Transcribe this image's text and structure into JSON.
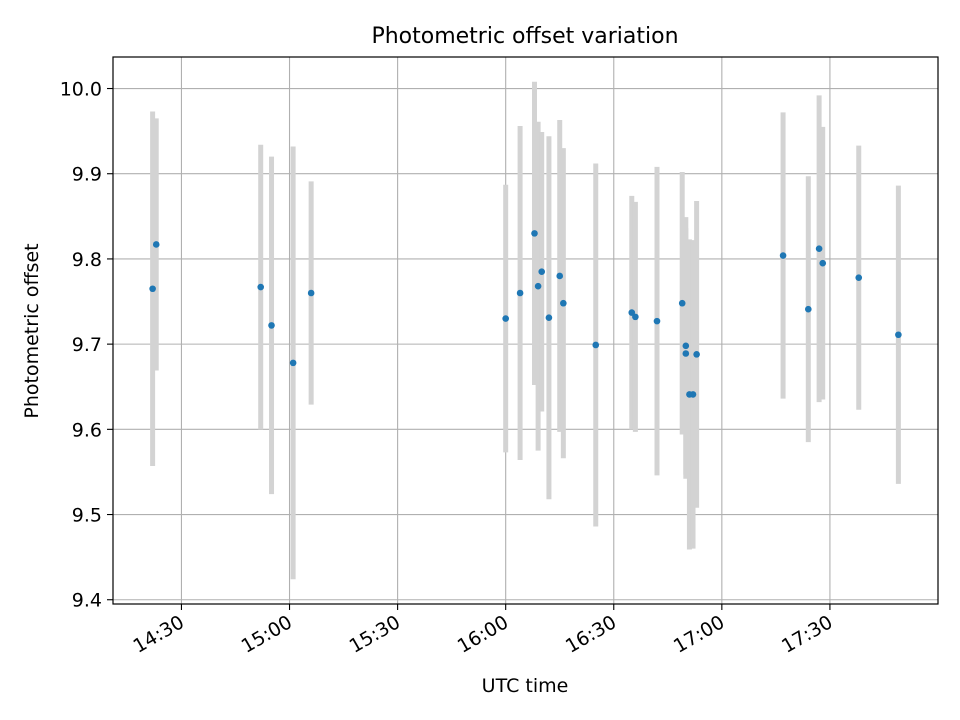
{
  "chart_data": {
    "type": "scatter",
    "title": "Photometric offset variation",
    "xlabel": "UTC time",
    "ylabel": "Photometric offset",
    "x_ticks": [
      "14:30",
      "15:00",
      "15:30",
      "16:00",
      "16:30",
      "17:00",
      "17:30"
    ],
    "y_ticks": [
      "9.4",
      "9.5",
      "9.6",
      "9.7",
      "9.8",
      "9.9",
      "10.0"
    ],
    "xlim": [
      "14:11",
      "18:00"
    ],
    "ylim": [
      9.395,
      10.037
    ],
    "grid": true,
    "errorbar_color": "#d3d3d3",
    "point_color": "#1f77b4",
    "points": [
      {
        "x": "14:22",
        "y": 9.765,
        "yerr": 0.208
      },
      {
        "x": "14:23",
        "y": 9.817,
        "yerr": 0.148
      },
      {
        "x": "14:52",
        "y": 9.767,
        "yerr": 0.167
      },
      {
        "x": "14:55",
        "y": 9.722,
        "yerr": 0.198
      },
      {
        "x": "15:01",
        "y": 9.678,
        "yerr": 0.254
      },
      {
        "x": "15:06",
        "y": 9.76,
        "yerr": 0.131
      },
      {
        "x": "16:00",
        "y": 9.73,
        "yerr": 0.157
      },
      {
        "x": "16:04",
        "y": 9.76,
        "yerr": 0.196
      },
      {
        "x": "16:08",
        "y": 9.83,
        "yerr": 0.178
      },
      {
        "x": "16:09",
        "y": 9.768,
        "yerr": 0.193
      },
      {
        "x": "16:10",
        "y": 9.785,
        "yerr": 0.164
      },
      {
        "x": "16:12",
        "y": 9.731,
        "yerr": 0.213
      },
      {
        "x": "16:15",
        "y": 9.78,
        "yerr": 0.183
      },
      {
        "x": "16:16",
        "y": 9.748,
        "yerr": 0.182
      },
      {
        "x": "16:25",
        "y": 9.699,
        "yerr": 0.213
      },
      {
        "x": "16:35",
        "y": 9.737,
        "yerr": 0.137
      },
      {
        "x": "16:36",
        "y": 9.732,
        "yerr": 0.135
      },
      {
        "x": "16:42",
        "y": 9.727,
        "yerr": 0.181
      },
      {
        "x": "16:49",
        "y": 9.748,
        "yerr": 0.154
      },
      {
        "x": "16:50",
        "y": 9.698,
        "yerr": 0.151
      },
      {
        "x": "16:50",
        "y": 9.689,
        "yerr": 0.147
      },
      {
        "x": "16:51",
        "y": 9.641,
        "yerr": 0.182
      },
      {
        "x": "16:52",
        "y": 9.641,
        "yerr": 0.181
      },
      {
        "x": "16:53",
        "y": 9.688,
        "yerr": 0.18
      },
      {
        "x": "17:17",
        "y": 9.804,
        "yerr": 0.168
      },
      {
        "x": "17:24",
        "y": 9.741,
        "yerr": 0.156
      },
      {
        "x": "17:27",
        "y": 9.812,
        "yerr": 0.18
      },
      {
        "x": "17:28",
        "y": 9.795,
        "yerr": 0.16
      },
      {
        "x": "17:38",
        "y": 9.778,
        "yerr": 0.155
      },
      {
        "x": "17:49",
        "y": 9.711,
        "yerr": 0.175
      }
    ]
  }
}
